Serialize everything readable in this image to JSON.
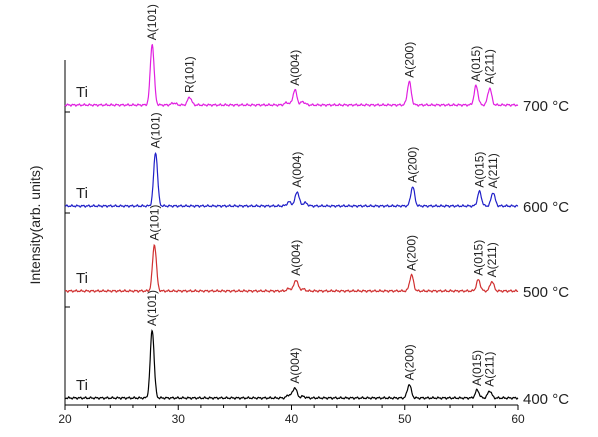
{
  "chart_data": {
    "type": "line",
    "title": "",
    "xlabel": "",
    "ylabel": "Intensity(arb. units)",
    "xlim": [
      20,
      60
    ],
    "x_ticks": [
      20,
      30,
      40,
      50,
      60
    ],
    "y_ticks_shown": false,
    "grid": false,
    "legend": "none",
    "series": [
      {
        "name": "700 °C",
        "sample_label": "Ti",
        "color": "#e020e0",
        "peaks": [
          {
            "label": "A(101)",
            "x": 27.7,
            "height": 0.76
          },
          {
            "label": "R(101)",
            "x": 31.0,
            "height": 0.1
          },
          {
            "label": "A(004)",
            "x": 40.3,
            "height": 0.19
          },
          {
            "label": "A(200)",
            "x": 50.4,
            "height": 0.29
          },
          {
            "label": "A(015)",
            "x": 56.3,
            "height": 0.24
          },
          {
            "label": "A(211)",
            "x": 57.5,
            "height": 0.21
          }
        ]
      },
      {
        "name": "600 °C",
        "sample_label": "Ti",
        "color": "#2020c8",
        "peaks": [
          {
            "label": "A(101)",
            "x": 28.0,
            "height": 0.67
          },
          {
            "label": "A(004)",
            "x": 40.5,
            "height": 0.18
          },
          {
            "label": "A(200)",
            "x": 50.7,
            "height": 0.24
          },
          {
            "label": "A(015)",
            "x": 56.6,
            "height": 0.18
          },
          {
            "label": "A(211)",
            "x": 57.8,
            "height": 0.17
          }
        ]
      },
      {
        "name": "500 °C",
        "sample_label": "Ti",
        "color": "#d03030",
        "peaks": [
          {
            "label": "A(101)",
            "x": 27.9,
            "height": 0.58
          },
          {
            "label": "A(004)",
            "x": 40.4,
            "height": 0.14
          },
          {
            "label": "A(200)",
            "x": 50.6,
            "height": 0.2
          },
          {
            "label": "A(015)",
            "x": 56.5,
            "height": 0.14
          },
          {
            "label": "A(211)",
            "x": 57.7,
            "height": 0.12
          }
        ]
      },
      {
        "name": "400 °C",
        "sample_label": "Ti",
        "color": "#000000",
        "peaks": [
          {
            "label": "A(101)",
            "x": 27.7,
            "height": 0.85
          },
          {
            "label": "A(004)",
            "x": 40.3,
            "height": 0.13
          },
          {
            "label": "A(200)",
            "x": 50.4,
            "height": 0.17
          },
          {
            "label": "A(015)",
            "x": 56.4,
            "height": 0.1
          },
          {
            "label": "A(211)",
            "x": 57.5,
            "height": 0.09
          }
        ]
      }
    ]
  }
}
